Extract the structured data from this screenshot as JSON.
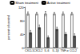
{
  "chart_data": {
    "type": "bar",
    "y_label": "percent of control",
    "categories": [
      "CXCL1",
      "CXCL2",
      "IL-6",
      "IL-1β",
      "TNF-α",
      "CCL2"
    ],
    "series": [
      {
        "name": "Sham treatment",
        "color": "#ffffff",
        "values": [
          100,
          100,
          100,
          100,
          100,
          100
        ],
        "errors": [
          6,
          5,
          7,
          5,
          6,
          5
        ]
      },
      {
        "name": "Active treatment",
        "color": "#555555",
        "values": [
          45,
          60,
          30,
          55,
          40,
          35
        ],
        "errors": [
          6,
          7,
          5,
          6,
          5,
          6
        ]
      }
    ],
    "ylim": [
      0,
      120
    ],
    "yticks": [
      0,
      40,
      80,
      120
    ],
    "legend": "top",
    "grid": false
  }
}
